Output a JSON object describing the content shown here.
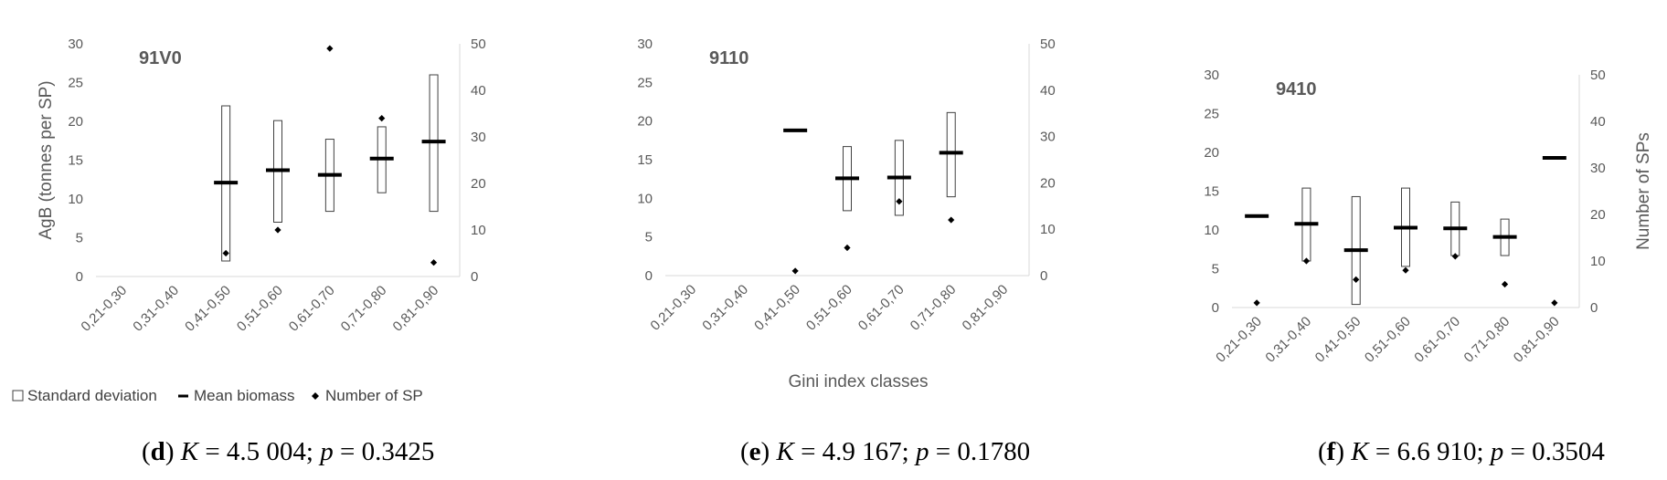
{
  "legend": {
    "std_label": "Standard deviation",
    "mean_label": "Mean biomass",
    "count_label": "Number of SP"
  },
  "colors": {
    "mean_bar": "#000000",
    "std_box": "#404040",
    "marker": "#000000",
    "gridline": "#d9d9d9",
    "text": "#595959"
  },
  "chart_data": [
    {
      "type": "box",
      "panel_label": "d",
      "title": "91V0",
      "caption": {
        "letter": "d",
        "k_var": "K",
        "k_value": " = 4.5 004; ",
        "p_var": "p",
        "p_value": " = 0.3425"
      },
      "categories": [
        "0,21-0,30",
        "0,31-0,40",
        "0,41-0,50",
        "0,51-0,60",
        "0,61-0,70",
        "0,71-0,80",
        "0,81-0,90"
      ],
      "ylabel": "AgB (tonnes per SP)",
      "y2label": "",
      "xlabel": "",
      "ylim": [
        0,
        30
      ],
      "y2lim": [
        0,
        50
      ],
      "yticks": [
        0,
        5,
        10,
        15,
        20,
        25,
        30
      ],
      "y2ticks": [
        0,
        10,
        20,
        30,
        40,
        50
      ],
      "mean_biomass": [
        null,
        null,
        12.1,
        13.7,
        13.1,
        15.2,
        17.4
      ],
      "std_low": [
        null,
        null,
        2.0,
        7.0,
        8.4,
        10.8,
        8.4
      ],
      "std_high": [
        null,
        null,
        22.0,
        20.1,
        17.7,
        19.3,
        26.0
      ],
      "number_of_sp": [
        null,
        null,
        5,
        10,
        49,
        34,
        3
      ],
      "grid": false
    },
    {
      "type": "box",
      "panel_label": "e",
      "title": "9110",
      "caption": {
        "letter": "e",
        "k_var": "K",
        "k_value": " = 4.9 167; ",
        "p_var": "p",
        "p_value": " = 0.1780"
      },
      "categories": [
        "0,21-0,30",
        "0,31-0,40",
        "0,41-0,50",
        "0,51-0,60",
        "0,61-0,70",
        "0,71-0,80",
        "0,81-0,90"
      ],
      "ylabel": "",
      "y2label": "",
      "xlabel": "Gini  index classes",
      "ylim": [
        0,
        30
      ],
      "y2lim": [
        0,
        50
      ],
      "yticks": [
        0,
        5,
        10,
        15,
        20,
        25,
        30
      ],
      "y2ticks": [
        0,
        10,
        20,
        30,
        40,
        50
      ],
      "mean_biomass": [
        null,
        null,
        18.8,
        12.6,
        12.7,
        15.9,
        null
      ],
      "std_low": [
        null,
        null,
        null,
        8.4,
        7.8,
        10.2,
        null
      ],
      "std_high": [
        null,
        null,
        null,
        16.7,
        17.5,
        21.1,
        null
      ],
      "number_of_sp": [
        null,
        null,
        1,
        6,
        16,
        12,
        null
      ],
      "grid": false
    },
    {
      "type": "box",
      "panel_label": "f",
      "title": "9410",
      "caption": {
        "letter": "f",
        "k_var": "K",
        "k_value": " = 6.6 910; ",
        "p_var": "p",
        "p_value": " = 0.3504"
      },
      "categories": [
        "0,21-0,30",
        "0,31-0,40",
        "0,41-0,50",
        "0,51-0,60",
        "0,61-0,70",
        "0,71-0,80",
        "0,81-0,90"
      ],
      "ylabel": "",
      "y2label": "Number of SPs",
      "xlabel": "",
      "ylim": [
        0,
        30
      ],
      "y2lim": [
        0,
        50
      ],
      "yticks": [
        0,
        5,
        10,
        15,
        20,
        25,
        30
      ],
      "y2ticks": [
        0,
        10,
        20,
        30,
        40,
        50
      ],
      "mean_biomass": [
        11.8,
        10.8,
        7.4,
        10.3,
        10.2,
        9.1,
        19.3
      ],
      "std_low": [
        null,
        6.0,
        0.4,
        5.3,
        6.7,
        6.7,
        null
      ],
      "std_high": [
        null,
        15.4,
        14.3,
        15.4,
        13.6,
        11.4,
        null
      ],
      "number_of_sp": [
        1,
        10,
        6,
        8,
        11,
        5,
        1
      ],
      "grid": false
    }
  ]
}
